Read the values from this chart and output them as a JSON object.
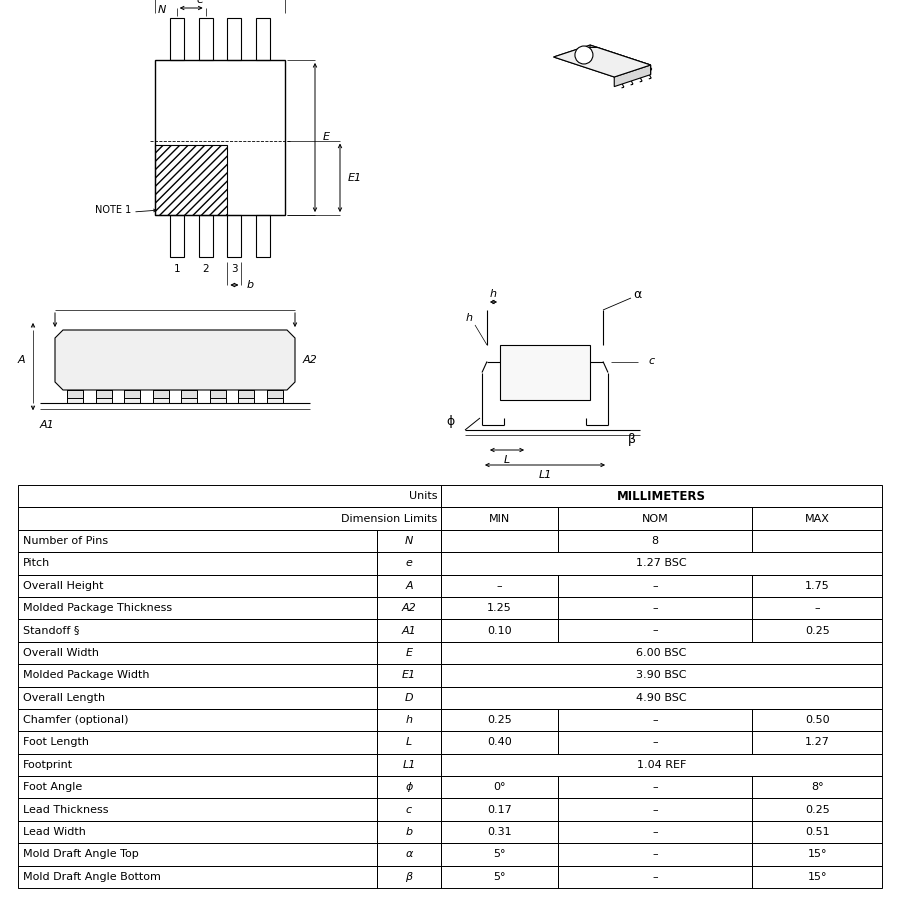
{
  "rows": [
    [
      "Number of Pins",
      "N",
      "",
      "8",
      ""
    ],
    [
      "Pitch",
      "e",
      "",
      "1.27 BSC",
      ""
    ],
    [
      "Overall Height",
      "A",
      "–",
      "–",
      "1.75"
    ],
    [
      "Molded Package Thickness",
      "A2",
      "1.25",
      "–",
      "–"
    ],
    [
      "Standoff §",
      "A1",
      "0.10",
      "–",
      "0.25"
    ],
    [
      "Overall Width",
      "E",
      "",
      "6.00 BSC",
      ""
    ],
    [
      "Molded Package Width",
      "E1",
      "",
      "3.90 BSC",
      ""
    ],
    [
      "Overall Length",
      "D",
      "",
      "4.90 BSC",
      ""
    ],
    [
      "Chamfer (optional)",
      "h",
      "0.25",
      "–",
      "0.50"
    ],
    [
      "Foot Length",
      "L",
      "0.40",
      "–",
      "1.27"
    ],
    [
      "Footprint",
      "L1",
      "",
      "1.04 REF",
      ""
    ],
    [
      "Foot Angle",
      "ϕ",
      "0°",
      "–",
      "8°"
    ],
    [
      "Lead Thickness",
      "c",
      "0.17",
      "–",
      "0.25"
    ],
    [
      "Lead Width",
      "b",
      "0.31",
      "–",
      "0.51"
    ],
    [
      "Mold Draft Angle Top",
      "α",
      "5°",
      "–",
      "15°"
    ],
    [
      "Mold Draft Angle Bottom",
      "β",
      "5°",
      "–",
      "15°"
    ]
  ],
  "bg_color": "#ffffff",
  "text_color": "#000000"
}
